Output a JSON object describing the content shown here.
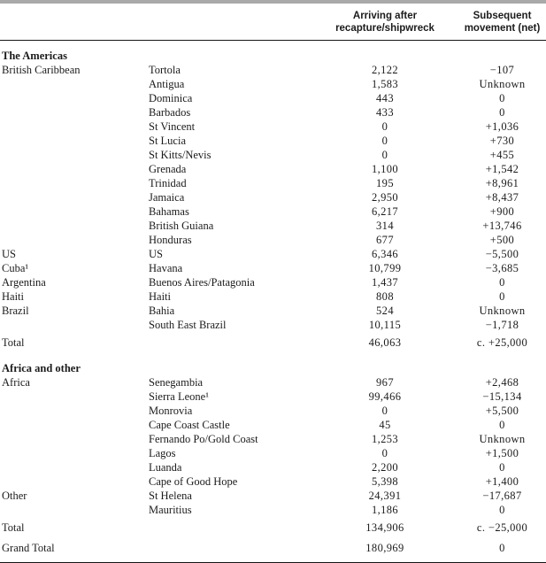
{
  "colors": {
    "top_rule": "#a9a9a9",
    "table_rule": "#161616",
    "text": "#1b1b1b"
  },
  "header": {
    "arriving": {
      "line1": "Arriving after",
      "line2": "recapture/shipwreck"
    },
    "movement": {
      "line1": "Subsequent",
      "line2": "movement (net)"
    }
  },
  "sections": [
    {
      "title": "The Americas",
      "rows": [
        {
          "region": "British Caribbean",
          "place": "Tortola",
          "arriving": "2,122",
          "movement": "−107"
        },
        {
          "region": "",
          "place": "Antigua",
          "arriving": "1,583",
          "movement": "Unknown"
        },
        {
          "region": "",
          "place": "Dominica",
          "arriving": "443",
          "movement": "0"
        },
        {
          "region": "",
          "place": "Barbados",
          "arriving": "433",
          "movement": "0"
        },
        {
          "region": "",
          "place": "St Vincent",
          "arriving": "0",
          "movement": "+1,036"
        },
        {
          "region": "",
          "place": "St Lucia",
          "arriving": "0",
          "movement": "+730"
        },
        {
          "region": "",
          "place": "St Kitts/Nevis",
          "arriving": "0",
          "movement": "+455"
        },
        {
          "region": "",
          "place": "Grenada",
          "arriving": "1,100",
          "movement": "+1,542"
        },
        {
          "region": "",
          "place": "Trinidad",
          "arriving": "195",
          "movement": "+8,961"
        },
        {
          "region": "",
          "place": "Jamaica",
          "arriving": "2,950",
          "movement": "+8,437"
        },
        {
          "region": "",
          "place": "Bahamas",
          "arriving": "6,217",
          "movement": "+900"
        },
        {
          "region": "",
          "place": "British Guiana",
          "arriving": "314",
          "movement": "+13,746"
        },
        {
          "region": "",
          "place": "Honduras",
          "arriving": "677",
          "movement": "+500"
        },
        {
          "region": "US",
          "place": "US",
          "arriving": "6,346",
          "movement": "−5,500"
        },
        {
          "region": "Cuba¹",
          "place": "Havana",
          "arriving": "10,799",
          "movement": "−3,685"
        },
        {
          "region": "Argentina",
          "place": "Buenos Aires/Patagonia",
          "arriving": "1,437",
          "movement": "0"
        },
        {
          "region": "Haiti",
          "place": "Haiti",
          "arriving": "808",
          "movement": "0"
        },
        {
          "region": "Brazil",
          "place": "Bahia",
          "arriving": "524",
          "movement": "Unknown"
        },
        {
          "region": "",
          "place": "South East Brazil",
          "arriving": "10,115",
          "movement": "−1,718"
        }
      ],
      "total": {
        "label": "Total",
        "arriving": "46,063",
        "movement": "c. +25,000"
      }
    },
    {
      "title": "Africa and other",
      "rows": [
        {
          "region": "Africa",
          "place": "Senegambia",
          "arriving": "967",
          "movement": "+2,468"
        },
        {
          "region": "",
          "place": "Sierra Leone¹",
          "arriving": "99,466",
          "movement": "−15,134"
        },
        {
          "region": "",
          "place": "Monrovia",
          "arriving": "0",
          "movement": "+5,500"
        },
        {
          "region": "",
          "place": "Cape Coast Castle",
          "arriving": "45",
          "movement": "0"
        },
        {
          "region": "",
          "place": "Fernando Po/Gold Coast",
          "arriving": "1,253",
          "movement": "Unknown"
        },
        {
          "region": "",
          "place": "Lagos",
          "arriving": "0",
          "movement": "+1,500"
        },
        {
          "region": "",
          "place": "Luanda",
          "arriving": "2,200",
          "movement": "0"
        },
        {
          "region": "",
          "place": "Cape of Good Hope",
          "arriving": "5,398",
          "movement": "+1,400"
        },
        {
          "region": "Other",
          "place": "St Helena",
          "arriving": "24,391",
          "movement": "−17,687"
        },
        {
          "region": "",
          "place": "Mauritius",
          "arriving": "1,186",
          "movement": "0"
        }
      ],
      "total": {
        "label": "Total",
        "arriving": "134,906",
        "movement": "c. −25,000"
      }
    }
  ],
  "grand_total": {
    "label": "Grand Total",
    "arriving": "180,969",
    "movement": "0"
  }
}
